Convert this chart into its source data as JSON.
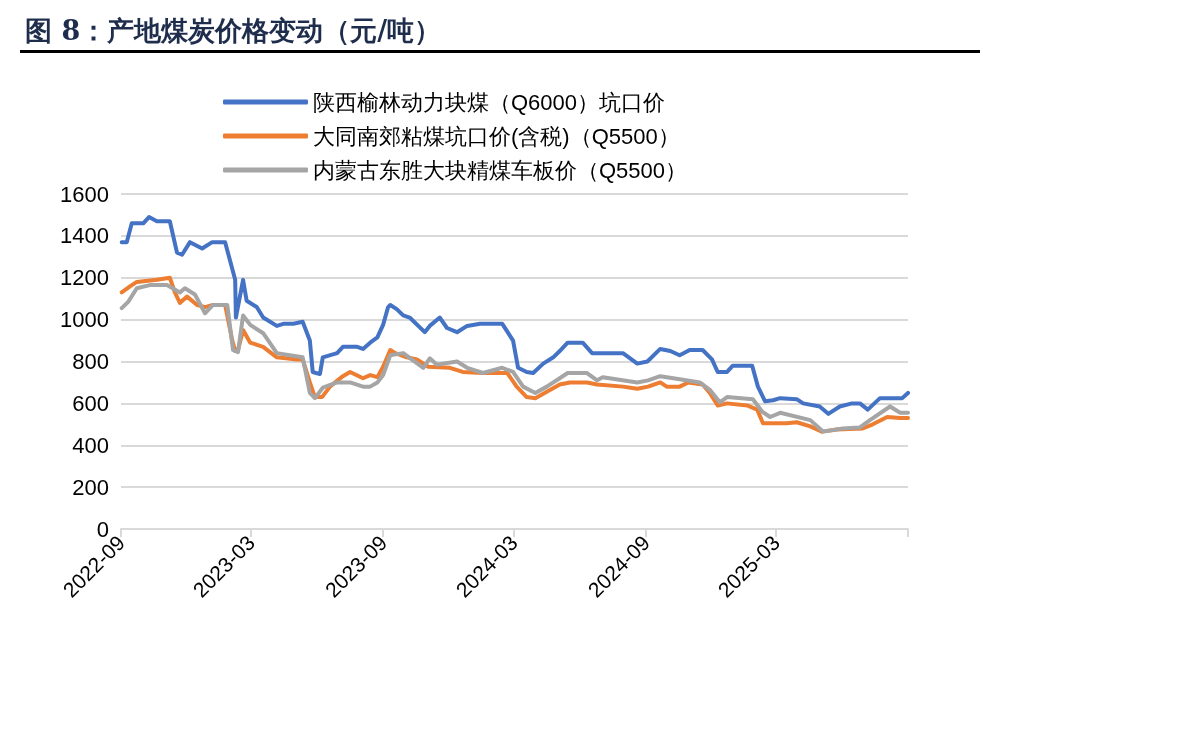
{
  "chart_data": {
    "type": "line",
    "title": "图 8：产地煤炭价格变动（元/吨）",
    "legend": "top",
    "grid": "y",
    "marker": "none",
    "line_style": "solid",
    "xlim": [
      "2022-09-01",
      "2025-09-01"
    ],
    "xticks": [
      {
        "value": "2022-09-01",
        "label": "2022-09"
      },
      {
        "value": "2023-03-01",
        "label": "2023-03"
      },
      {
        "value": "2023-09-01",
        "label": "2023-09"
      },
      {
        "value": "2024-03-01",
        "label": "2024-03"
      },
      {
        "value": "2024-09-01",
        "label": "2024-09"
      },
      {
        "value": "2025-03-01",
        "label": "2025-03"
      },
      {
        "value": "2025-09-01",
        "label": null
      }
    ],
    "ylim": [
      0,
      1600
    ],
    "yticks": [
      0,
      200,
      400,
      600,
      800,
      1000,
      1200,
      1400,
      1600
    ],
    "series": [
      {
        "name": "陕西榆林动力块煤（Q6000）坑口价",
        "color": "#4472c4",
        "x": [
          "2022-09-02",
          "2022-09-09",
          "2022-09-16",
          "2022-10-02",
          "2022-10-10",
          "2022-10-21",
          "2022-11-08",
          "2022-11-18",
          "2022-11-25",
          "2022-12-06",
          "2022-12-23",
          "2023-01-06",
          "2023-01-24",
          "2023-02-07",
          "2023-02-08",
          "2023-02-18",
          "2023-02-23",
          "2023-03-09",
          "2023-03-18",
          "2023-04-06",
          "2023-04-15",
          "2023-04-29",
          "2023-05-12",
          "2023-05-22",
          "2023-05-26",
          "2023-06-05",
          "2023-06-09",
          "2023-06-29",
          "2023-07-07",
          "2023-07-27",
          "2023-08-04",
          "2023-08-14",
          "2023-08-24",
          "2023-09-01",
          "2023-09-08",
          "2023-09-11",
          "2023-09-20",
          "2023-09-29",
          "2023-10-08",
          "2023-10-29",
          "2023-11-05",
          "2023-11-19",
          "2023-11-29",
          "2023-12-13",
          "2023-12-27",
          "2024-01-14",
          "2024-02-14",
          "2024-02-29",
          "2024-03-07",
          "2024-03-19",
          "2024-03-28",
          "2024-04-11",
          "2024-04-25",
          "2024-05-04",
          "2024-05-15",
          "2024-06-05",
          "2024-06-18",
          "2024-07-31",
          "2024-08-20",
          "2024-09-03",
          "2024-09-21",
          "2024-10-05",
          "2024-10-18",
          "2024-11-01",
          "2024-11-19",
          "2024-12-02",
          "2024-12-10",
          "2024-12-23",
          "2024-12-31",
          "2025-01-27",
          "2025-02-04",
          "2025-02-14",
          "2025-02-25",
          "2025-03-07",
          "2025-03-30",
          "2025-04-08",
          "2025-05-01",
          "2025-05-13",
          "2025-05-29",
          "2025-06-15",
          "2025-06-26",
          "2025-07-07",
          "2025-07-24",
          "2025-08-24",
          "2025-09-01"
        ],
        "values": [
          1370,
          1370,
          1460,
          1460,
          1490,
          1470,
          1470,
          1320,
          1310,
          1370,
          1340,
          1370,
          1370,
          1190,
          1010,
          1190,
          1090,
          1060,
          1010,
          970,
          980,
          980,
          990,
          900,
          750,
          740,
          820,
          840,
          870,
          870,
          860,
          890,
          915,
          975,
          1060,
          1070,
          1050,
          1020,
          1010,
          940,
          970,
          1010,
          960,
          940,
          970,
          980,
          980,
          900,
          770,
          750,
          745,
          790,
          820,
          850,
          890,
          890,
          840,
          840,
          790,
          800,
          860,
          850,
          830,
          855,
          855,
          810,
          750,
          750,
          780,
          780,
          680,
          610,
          615,
          625,
          620,
          600,
          585,
          550,
          585,
          600,
          600,
          570,
          625,
          625,
          650
        ]
      },
      {
        "name": "大同南郊粘煤坑口价(含税)（Q5500）",
        "color": "#ed7d31",
        "x": [
          "2022-09-02",
          "2022-09-14",
          "2022-09-23",
          "2022-10-21",
          "2022-11-08",
          "2022-11-15",
          "2022-11-22",
          "2022-12-02",
          "2022-12-16",
          "2022-12-27",
          "2023-01-07",
          "2023-01-24",
          "2023-02-03",
          "2023-02-07",
          "2023-02-11",
          "2023-02-18",
          "2023-02-28",
          "2023-03-18",
          "2023-04-06",
          "2023-05-04",
          "2023-05-12",
          "2023-05-22",
          "2023-05-29",
          "2023-06-08",
          "2023-06-19",
          "2023-07-07",
          "2023-07-17",
          "2023-08-04",
          "2023-08-14",
          "2023-08-24",
          "2023-09-01",
          "2023-09-11",
          "2023-09-18",
          "2023-10-04",
          "2023-10-18",
          "2023-11-03",
          "2023-12-03",
          "2023-12-21",
          "2024-01-18",
          "2024-02-21",
          "2024-03-05",
          "2024-03-19",
          "2024-03-31",
          "2024-04-16",
          "2024-05-04",
          "2024-05-18",
          "2024-06-11",
          "2024-06-25",
          "2024-07-31",
          "2024-08-20",
          "2024-09-04",
          "2024-09-21",
          "2024-09-30",
          "2024-10-18",
          "2024-10-30",
          "2024-11-19",
          "2024-11-29",
          "2024-12-10",
          "2024-12-23",
          "2025-01-20",
          "2025-02-03",
          "2025-02-11",
          "2025-02-25",
          "2025-03-16",
          "2025-03-30",
          "2025-04-18",
          "2025-05-04",
          "2025-05-25",
          "2025-06-30",
          "2025-07-14",
          "2025-08-03",
          "2025-08-21",
          "2025-09-01"
        ],
        "values": [
          1130,
          1160,
          1180,
          1190,
          1200,
          1130,
          1080,
          1110,
          1070,
          1060,
          1070,
          1070,
          900,
          850,
          855,
          950,
          890,
          870,
          820,
          810,
          810,
          700,
          630,
          630,
          680,
          730,
          750,
          720,
          735,
          725,
          775,
          855,
          840,
          820,
          810,
          775,
          770,
          750,
          745,
          745,
          680,
          630,
          625,
          655,
          690,
          700,
          700,
          690,
          680,
          670,
          680,
          700,
          680,
          680,
          700,
          690,
          650,
          590,
          600,
          590,
          570,
          505,
          505,
          505,
          510,
          490,
          465,
          475,
          480,
          500,
          535,
          530,
          530
        ]
      },
      {
        "name": "内蒙古东胜大块精煤车板价（Q5500）",
        "color": "#a5a5a5",
        "x": [
          "2022-09-02",
          "2022-09-11",
          "2022-09-23",
          "2022-10-11",
          "2022-11-04",
          "2022-11-22",
          "2022-11-29",
          "2022-12-13",
          "2022-12-27",
          "2023-01-07",
          "2023-01-27",
          "2023-02-04",
          "2023-02-11",
          "2023-02-18",
          "2023-02-28",
          "2023-03-18",
          "2023-04-06",
          "2023-04-24",
          "2023-05-12",
          "2023-05-22",
          "2023-05-29",
          "2023-06-09",
          "2023-06-29",
          "2023-07-17",
          "2023-08-04",
          "2023-08-14",
          "2023-08-24",
          "2023-09-01",
          "2023-09-11",
          "2023-09-29",
          "2023-10-27",
          "2023-11-05",
          "2023-11-15",
          "2023-12-13",
          "2023-12-27",
          "2024-01-18",
          "2024-02-14",
          "2024-02-29",
          "2024-03-14",
          "2024-03-31",
          "2024-04-16",
          "2024-05-04",
          "2024-05-15",
          "2024-06-11",
          "2024-06-25",
          "2024-07-03",
          "2024-08-20",
          "2024-09-04",
          "2024-09-21",
          "2024-10-18",
          "2024-11-15",
          "2024-11-29",
          "2024-12-13",
          "2024-12-23",
          "2025-01-28",
          "2025-02-10",
          "2025-02-21",
          "2025-03-07",
          "2025-04-18",
          "2025-05-06",
          "2025-06-02",
          "2025-06-26",
          "2025-07-10",
          "2025-08-07",
          "2025-08-21",
          "2025-09-01"
        ],
        "values": [
          1055,
          1085,
          1150,
          1165,
          1165,
          1130,
          1150,
          1120,
          1030,
          1070,
          1070,
          855,
          845,
          1020,
          975,
          935,
          840,
          830,
          820,
          650,
          625,
          675,
          700,
          700,
          680,
          680,
          700,
          735,
          830,
          840,
          770,
          815,
          785,
          800,
          770,
          745,
          770,
          750,
          680,
          650,
          680,
          720,
          745,
          745,
          710,
          725,
          700,
          710,
          730,
          715,
          700,
          665,
          605,
          630,
          620,
          560,
          535,
          555,
          520,
          465,
          480,
          485,
          520,
          585,
          555,
          555
        ]
      }
    ]
  }
}
